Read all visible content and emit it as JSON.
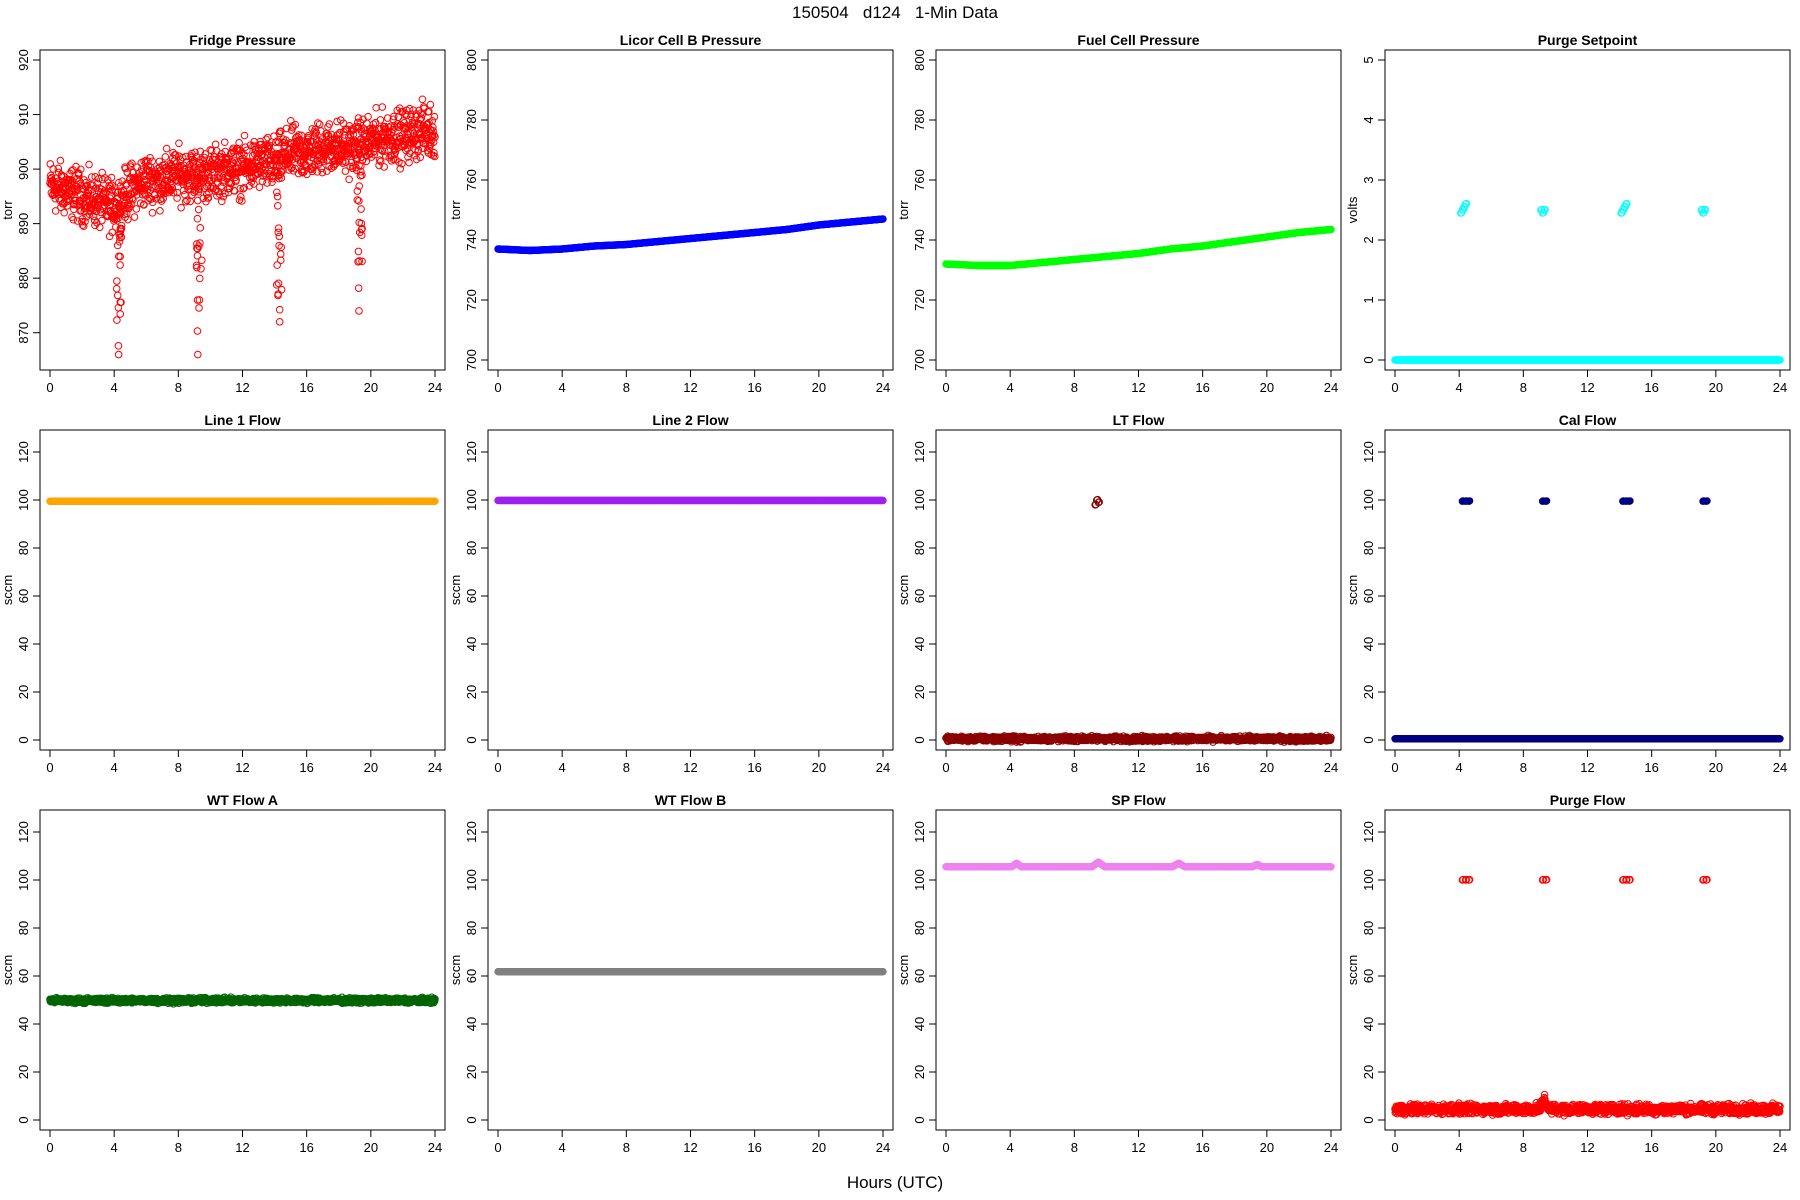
{
  "figure": {
    "title": "150504   d124   1-Min Data",
    "xlabel": "Hours (UTC)"
  },
  "chart_data": [
    {
      "type": "scatter",
      "title": "Fridge Pressure",
      "xlabel": "",
      "ylabel": "torr",
      "xlim": [
        0,
        24
      ],
      "ylim": [
        865,
        920
      ],
      "xticks": [
        0,
        4,
        8,
        12,
        16,
        20,
        24
      ],
      "yticks": [
        870,
        880,
        890,
        900,
        910,
        920
      ],
      "color": "#ff0000",
      "marker": "open",
      "series": [
        {
          "x": [
            0,
            1,
            2,
            3,
            4,
            5,
            6,
            7,
            8,
            9,
            10,
            11,
            12,
            13,
            14,
            15,
            16,
            17,
            18,
            19,
            20,
            21,
            22,
            23,
            24
          ],
          "y": [
            897,
            896,
            895,
            894,
            893,
            896,
            898,
            898,
            899,
            899,
            899,
            900,
            900,
            901,
            901,
            903,
            903,
            904,
            904,
            904,
            905,
            906,
            906,
            907,
            907
          ],
          "spread": 7,
          "dips": [
            {
              "x": 4.3,
              "min": 866
            },
            {
              "x": 9.3,
              "min": 866
            },
            {
              "x": 14.3,
              "min": 872
            },
            {
              "x": 19.3,
              "min": 874
            }
          ]
        }
      ]
    },
    {
      "type": "scatter",
      "title": "Licor Cell B Pressure",
      "xlabel": "",
      "ylabel": "torr",
      "xlim": [
        0,
        24
      ],
      "ylim": [
        700,
        800
      ],
      "xticks": [
        0,
        4,
        8,
        12,
        16,
        20,
        24
      ],
      "yticks": [
        700,
        720,
        740,
        760,
        780,
        800
      ],
      "color": "#0000ff",
      "marker": "filled",
      "series": [
        {
          "x": [
            0,
            2,
            4,
            6,
            8,
            10,
            12,
            14,
            16,
            18,
            20,
            22,
            24
          ],
          "y": [
            737,
            736.5,
            737,
            738,
            738.5,
            739.5,
            740.5,
            741.5,
            742.5,
            743.5,
            745,
            746,
            747
          ]
        }
      ]
    },
    {
      "type": "scatter",
      "title": "Fuel Cell Pressure",
      "xlabel": "",
      "ylabel": "torr",
      "xlim": [
        0,
        24
      ],
      "ylim": [
        700,
        800
      ],
      "xticks": [
        0,
        4,
        8,
        12,
        16,
        20,
        24
      ],
      "yticks": [
        700,
        720,
        740,
        760,
        780,
        800
      ],
      "color": "#00ff00",
      "marker": "filled",
      "series": [
        {
          "x": [
            0,
            2,
            4,
            6,
            8,
            10,
            12,
            14,
            16,
            18,
            20,
            22,
            24
          ],
          "y": [
            732,
            731.5,
            731.5,
            732.5,
            733.5,
            734.5,
            735.5,
            737,
            738,
            739.5,
            741,
            742.5,
            743.5
          ]
        }
      ]
    },
    {
      "type": "scatter",
      "title": "Purge Setpoint",
      "xlabel": "",
      "ylabel": "volts",
      "xlim": [
        0,
        24
      ],
      "ylim": [
        0,
        5
      ],
      "xticks": [
        0,
        4,
        8,
        12,
        16,
        20,
        24
      ],
      "yticks": [
        0,
        1,
        2,
        3,
        4,
        5
      ],
      "color": "#00ffff",
      "marker": "open",
      "series": [
        {
          "x": [
            0,
            24
          ],
          "y": [
            0,
            0
          ]
        },
        {
          "x": [
            4.1,
            4.2,
            4.3,
            4.4,
            9.1,
            9.2,
            9.3,
            14.1,
            14.2,
            14.3,
            14.4,
            19.1,
            19.2,
            19.3
          ],
          "y": [
            2.45,
            2.5,
            2.55,
            2.6,
            2.5,
            2.45,
            2.5,
            2.45,
            2.5,
            2.55,
            2.6,
            2.5,
            2.45,
            2.5
          ]
        }
      ]
    },
    {
      "type": "scatter",
      "title": "Line 1 Flow",
      "xlabel": "",
      "ylabel": "sccm",
      "xlim": [
        0,
        24
      ],
      "ylim": [
        0,
        125
      ],
      "xticks": [
        0,
        4,
        8,
        12,
        16,
        20,
        24
      ],
      "yticks": [
        0,
        20,
        40,
        60,
        80,
        100,
        120
      ],
      "color": "#ffa500",
      "marker": "filled",
      "series": [
        {
          "x": [
            0,
            24
          ],
          "y": [
            99.5,
            99.5
          ]
        }
      ]
    },
    {
      "type": "scatter",
      "title": "Line 2 Flow",
      "xlabel": "",
      "ylabel": "sccm",
      "xlim": [
        0,
        24
      ],
      "ylim": [
        0,
        125
      ],
      "xticks": [
        0,
        4,
        8,
        12,
        16,
        20,
        24
      ],
      "yticks": [
        0,
        20,
        40,
        60,
        80,
        100,
        120
      ],
      "color": "#a020f0",
      "marker": "filled",
      "series": [
        {
          "x": [
            0,
            24
          ],
          "y": [
            99.8,
            99.8
          ]
        }
      ]
    },
    {
      "type": "scatter",
      "title": "LT Flow",
      "xlabel": "",
      "ylabel": "sccm",
      "xlim": [
        0,
        24
      ],
      "ylim": [
        0,
        125
      ],
      "xticks": [
        0,
        4,
        8,
        12,
        16,
        20,
        24
      ],
      "yticks": [
        0,
        20,
        40,
        60,
        80,
        100,
        120
      ],
      "color": "#8b0000",
      "marker": "open",
      "series": [
        {
          "x": [
            0,
            24
          ],
          "y": [
            0.5,
            0.5
          ],
          "spread": 1.5
        },
        {
          "x": [
            9.3,
            9.4,
            9.5
          ],
          "y": [
            98,
            100,
            99
          ]
        }
      ]
    },
    {
      "type": "scatter",
      "title": "Cal Flow",
      "xlabel": "",
      "ylabel": "sccm",
      "xlim": [
        0,
        24
      ],
      "ylim": [
        0,
        125
      ],
      "xticks": [
        0,
        4,
        8,
        12,
        16,
        20,
        24
      ],
      "yticks": [
        0,
        20,
        40,
        60,
        80,
        100,
        120
      ],
      "color": "#000080",
      "marker": "filled",
      "series": [
        {
          "x": [
            0,
            24
          ],
          "y": [
            0.5,
            0.5
          ]
        },
        {
          "x": [
            4.2,
            4.4,
            4.6,
            9.2,
            9.4,
            14.2,
            14.4,
            14.6,
            19.2,
            19.4
          ],
          "y": [
            99.5,
            99.5,
            99.5,
            99.5,
            99.5,
            99.5,
            99.5,
            99.5,
            99.5,
            99.5
          ]
        }
      ]
    },
    {
      "type": "scatter",
      "title": "WT Flow A",
      "xlabel": "",
      "ylabel": "sccm",
      "xlim": [
        0,
        24
      ],
      "ylim": [
        0,
        125
      ],
      "xticks": [
        0,
        4,
        8,
        12,
        16,
        20,
        24
      ],
      "yticks": [
        0,
        20,
        40,
        60,
        80,
        100,
        120
      ],
      "color": "#006400",
      "marker": "open",
      "series": [
        {
          "x": [
            0,
            24
          ],
          "y": [
            49.8,
            49.8
          ],
          "spread": 1.5
        }
      ]
    },
    {
      "type": "scatter",
      "title": "WT Flow B",
      "xlabel": "",
      "ylabel": "sccm",
      "xlim": [
        0,
        24
      ],
      "ylim": [
        0,
        125
      ],
      "xticks": [
        0,
        4,
        8,
        12,
        16,
        20,
        24
      ],
      "yticks": [
        0,
        20,
        40,
        60,
        80,
        100,
        120
      ],
      "color": "#808080",
      "marker": "filled",
      "series": [
        {
          "x": [
            0,
            24
          ],
          "y": [
            61.8,
            61.8
          ]
        }
      ]
    },
    {
      "type": "scatter",
      "title": "SP Flow",
      "xlabel": "",
      "ylabel": "sccm",
      "xlim": [
        0,
        24
      ],
      "ylim": [
        0,
        125
      ],
      "xticks": [
        0,
        4,
        8,
        12,
        16,
        20,
        24
      ],
      "yticks": [
        0,
        20,
        40,
        60,
        80,
        100,
        120
      ],
      "color": "#ee82ee",
      "marker": "filled",
      "series": [
        {
          "x": [
            0,
            4.1,
            4.4,
            4.7,
            9.1,
            9.5,
            9.9,
            14.1,
            14.5,
            14.9,
            19.1,
            19.4,
            19.7,
            24
          ],
          "y": [
            105.5,
            105.5,
            107,
            105.5,
            105.5,
            107.5,
            105.5,
            105.5,
            107,
            105.5,
            105.5,
            106.5,
            105.5,
            105.5
          ]
        }
      ]
    },
    {
      "type": "scatter",
      "title": "Purge Flow",
      "xlabel": "",
      "ylabel": "sccm",
      "xlim": [
        0,
        24
      ],
      "ylim": [
        0,
        125
      ],
      "xticks": [
        0,
        4,
        8,
        12,
        16,
        20,
        24
      ],
      "yticks": [
        0,
        20,
        40,
        60,
        80,
        100,
        120
      ],
      "color": "#ff0000",
      "marker": "open",
      "series": [
        {
          "x": [
            0,
            24
          ],
          "y": [
            4.5,
            4.5
          ],
          "spread": 3,
          "bumps": [
            {
              "x": 9.3,
              "y": 10
            }
          ]
        },
        {
          "x": [
            4.2,
            4.4,
            4.6,
            9.2,
            9.4,
            14.2,
            14.4,
            14.6,
            19.2,
            19.4
          ],
          "y": [
            100,
            100,
            100,
            100,
            100,
            100,
            100,
            100,
            100,
            100
          ]
        }
      ]
    }
  ]
}
